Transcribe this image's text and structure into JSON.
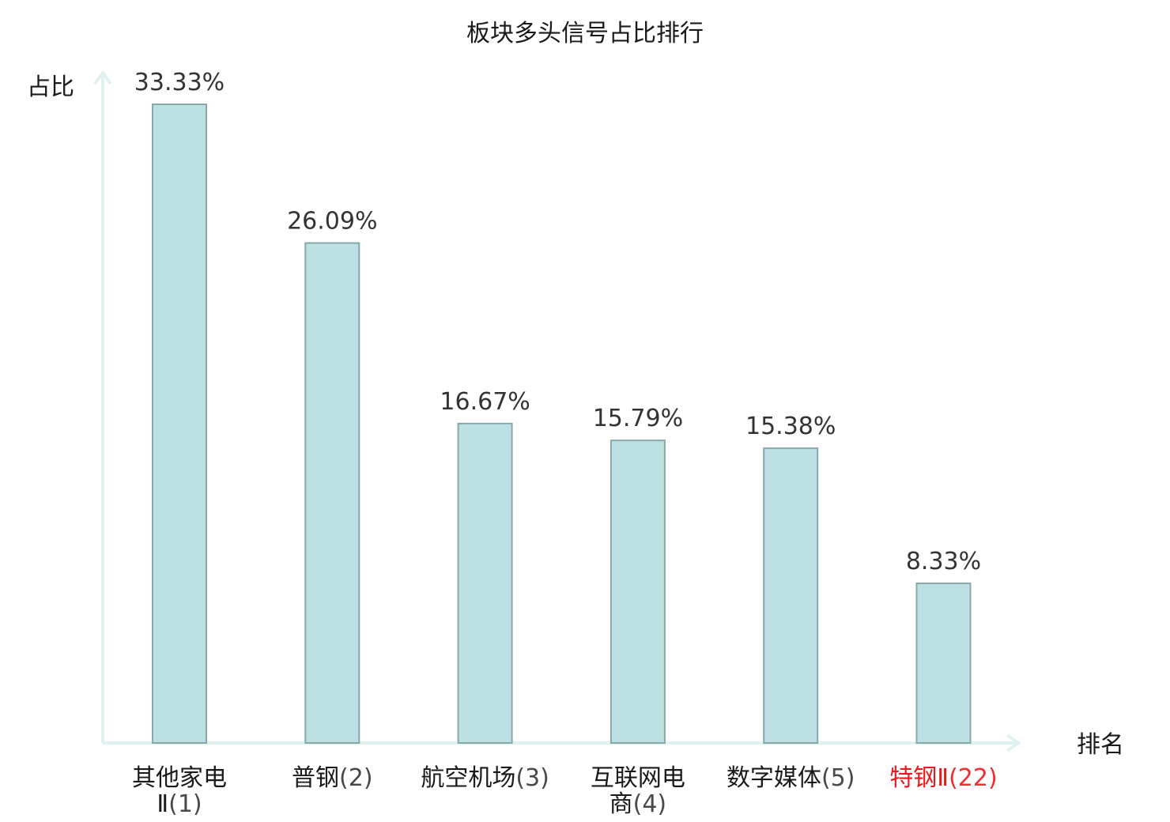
{
  "chart_data": {
    "type": "bar",
    "title": "板块多头信号占比排行",
    "xlabel": "排名",
    "ylabel": "占比",
    "categories": [
      {
        "lines": [
          {
            "name": "其他家电",
            "rank": ""
          },
          {
            "name": "Ⅱ",
            "rank": "(1)"
          }
        ],
        "highlight": false
      },
      {
        "lines": [
          {
            "name": "普钢",
            "rank": "(2)"
          }
        ],
        "highlight": false
      },
      {
        "lines": [
          {
            "name": "航空机场",
            "rank": "(3)"
          }
        ],
        "highlight": false
      },
      {
        "lines": [
          {
            "name": "互联网电",
            "rank": ""
          },
          {
            "name": "商",
            "rank": "(4)"
          }
        ],
        "highlight": false
      },
      {
        "lines": [
          {
            "name": "数字媒体",
            "rank": "(5)"
          }
        ],
        "highlight": false
      },
      {
        "lines": [
          {
            "name": "特钢Ⅱ",
            "rank": "(22)"
          }
        ],
        "highlight": true
      }
    ],
    "values": [
      33.33,
      26.09,
      16.67,
      15.79,
      15.38,
      8.33
    ],
    "value_labels": [
      "33.33%",
      "26.09%",
      "16.67%",
      "15.79%",
      "15.38%",
      "8.33%"
    ],
    "ylim": [
      0,
      35
    ],
    "grid": false,
    "colors": {
      "bar_fill": "#bde0e3",
      "bar_stroke": "#86a8aa",
      "axis": "#dff2ef",
      "label_text": "#1a1a1a",
      "highlight": "#e8191c"
    }
  }
}
